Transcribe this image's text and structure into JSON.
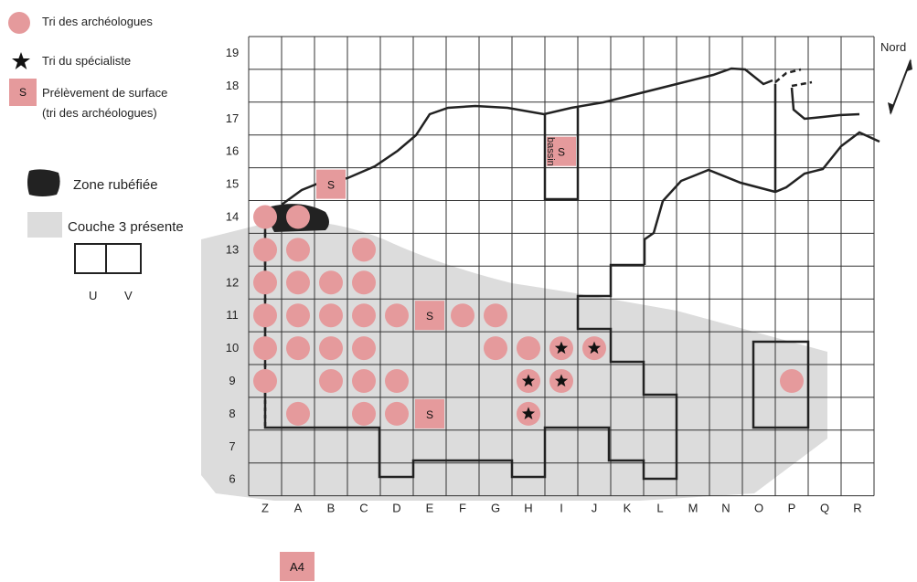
{
  "legend": {
    "tri_archeologues": "Tri des archéologues",
    "tri_specialiste": "Tri du spécialiste",
    "prelevement_symbol": "S",
    "prelevement_line1": "Prélèvement de surface",
    "prelevement_line2": "(tri des archéologues)",
    "zone_rubefiee": "Zone rubéfiée",
    "couche3": "Couche 3 présente",
    "u": "U",
    "v": "V"
  },
  "grid": {
    "columns": [
      "Z",
      "A",
      "B",
      "C",
      "D",
      "E",
      "F",
      "G",
      "H",
      "I",
      "J",
      "K",
      "L",
      "M",
      "N",
      "O",
      "P",
      "Q",
      "R"
    ],
    "rows": [
      "19",
      "18",
      "17",
      "16",
      "15",
      "14",
      "13",
      "12",
      "11",
      "10",
      "9",
      "8",
      "7",
      "6"
    ]
  },
  "north_label": "Nord",
  "bassin_label": "bassin",
  "square_label": "A4",
  "circles": [
    [
      "Z",
      "14"
    ],
    [
      "A",
      "14"
    ],
    [
      "Z",
      "13"
    ],
    [
      "A",
      "13"
    ],
    [
      "C",
      "13"
    ],
    [
      "Z",
      "12"
    ],
    [
      "A",
      "12"
    ],
    [
      "B",
      "12"
    ],
    [
      "C",
      "12"
    ],
    [
      "Z",
      "11"
    ],
    [
      "A",
      "11"
    ],
    [
      "B",
      "11"
    ],
    [
      "C",
      "11"
    ],
    [
      "D",
      "11"
    ],
    [
      "F",
      "11"
    ],
    [
      "G",
      "11"
    ],
    [
      "Z",
      "10"
    ],
    [
      "A",
      "10"
    ],
    [
      "B",
      "10"
    ],
    [
      "C",
      "10"
    ],
    [
      "G",
      "10"
    ],
    [
      "H",
      "10"
    ],
    [
      "Z",
      "9"
    ],
    [
      "B",
      "9"
    ],
    [
      "C",
      "9"
    ],
    [
      "D",
      "9"
    ],
    [
      "A",
      "8"
    ],
    [
      "C",
      "8"
    ],
    [
      "D",
      "8"
    ],
    [
      "P",
      "9"
    ]
  ],
  "stars": [
    [
      "I",
      "10"
    ],
    [
      "J",
      "10"
    ],
    [
      "H",
      "9"
    ],
    [
      "I",
      "9"
    ],
    [
      "H",
      "8"
    ]
  ],
  "surface_samples": [
    [
      "E",
      "11"
    ],
    [
      "E",
      "8"
    ],
    [
      "B",
      "15"
    ],
    [
      "I",
      "16"
    ]
  ],
  "colors": {
    "sample": "#e59a9c",
    "shade": "#dcdcdc",
    "burnt": "#222222",
    "line": "#222222",
    "grid": "#333333"
  }
}
